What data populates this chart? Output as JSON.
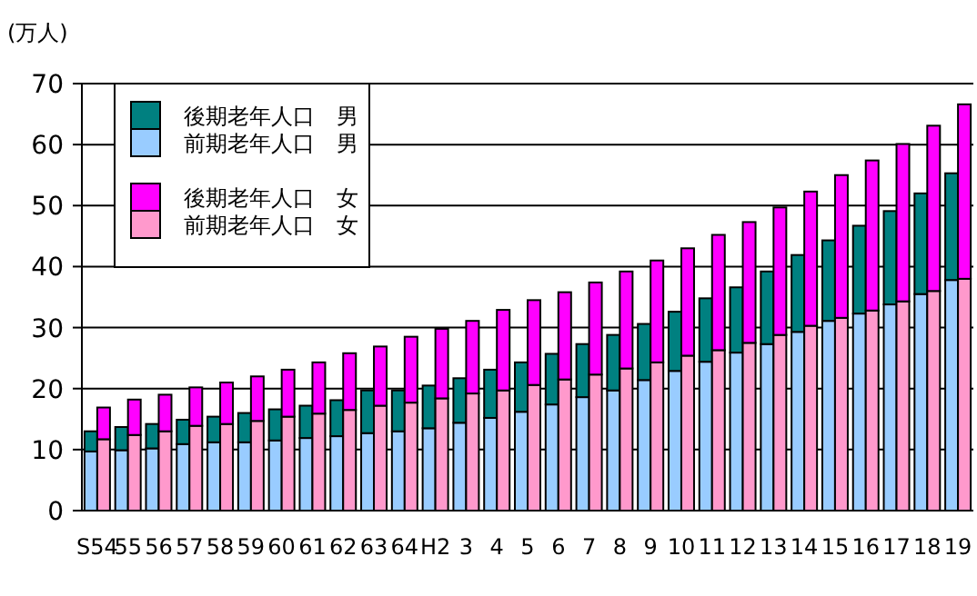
{
  "chart_data": [
    {
      "type": "bar",
      "stacked": true,
      "ylabel": "(万人)",
      "categories": [
        "S54",
        "55",
        "56",
        "57",
        "58",
        "59",
        "60",
        "61",
        "62",
        "63",
        "64",
        "H2",
        "3",
        "4",
        "5",
        "6",
        "7",
        "8",
        "9",
        "10",
        "11",
        "12",
        "13",
        "14",
        "15",
        "16",
        "17",
        "18",
        "19"
      ],
      "ylim": [
        0,
        70
      ],
      "yticks": [
        0,
        10,
        20,
        30,
        40,
        50,
        60,
        70
      ],
      "grid": "y",
      "legend": "top left",
      "series": [
        {
          "name": "前期老年人口　男",
          "color": "#99ccff",
          "values": [
            9.7,
            9.9,
            10.2,
            10.9,
            11.2,
            11.2,
            11.5,
            11.9,
            12.2,
            12.7,
            13.0,
            13.5,
            14.4,
            15.2,
            16.2,
            17.4,
            18.6,
            19.7,
            21.4,
            22.9,
            24.4,
            25.9,
            27.3,
            29.3,
            31.1,
            32.3,
            33.8,
            35.5,
            37.8
          ]
        },
        {
          "name": "後期老年人口　男",
          "color": "#008080",
          "values": [
            3.3,
            3.8,
            4.0,
            4.0,
            4.2,
            4.8,
            5.1,
            5.3,
            5.9,
            7.0,
            6.7,
            7.0,
            7.3,
            7.9,
            8.1,
            8.3,
            8.7,
            9.1,
            9.2,
            9.7,
            10.4,
            10.7,
            11.9,
            12.6,
            13.2,
            14.4,
            15.3,
            16.5,
            17.5
          ]
        }
      ]
    },
    {
      "type": "bar",
      "stacked": true,
      "tick_labels": false,
      "categories": [
        null,
        null,
        null,
        null,
        null,
        null,
        null,
        null,
        null,
        null,
        null,
        null,
        null,
        null,
        null,
        null,
        null,
        null,
        null,
        null,
        null,
        null,
        null,
        null,
        null,
        null,
        null,
        null,
        null
      ],
      "ylim": [
        0,
        70
      ],
      "legend": "top left",
      "series": [
        {
          "name": "前期老年人口　女",
          "color": "#ff99cc",
          "values": [
            11.7,
            12.4,
            13.0,
            13.9,
            14.2,
            14.7,
            15.4,
            15.9,
            16.5,
            17.2,
            17.7,
            18.4,
            19.2,
            19.7,
            20.6,
            21.5,
            22.3,
            23.3,
            24.3,
            25.4,
            26.3,
            27.5,
            28.8,
            30.3,
            31.6,
            32.8,
            34.3,
            36.0,
            38.0
          ]
        },
        {
          "name": "後期老年人口　女",
          "color": "#ff00ff",
          "values": [
            5.2,
            5.8,
            6.0,
            6.3,
            6.8,
            7.3,
            7.7,
            8.4,
            9.3,
            9.7,
            10.8,
            11.4,
            11.9,
            13.2,
            13.9,
            14.3,
            15.1,
            15.9,
            16.7,
            17.6,
            18.9,
            19.8,
            20.9,
            22.0,
            23.4,
            24.6,
            25.8,
            27.1,
            28.6
          ]
        }
      ]
    }
  ]
}
